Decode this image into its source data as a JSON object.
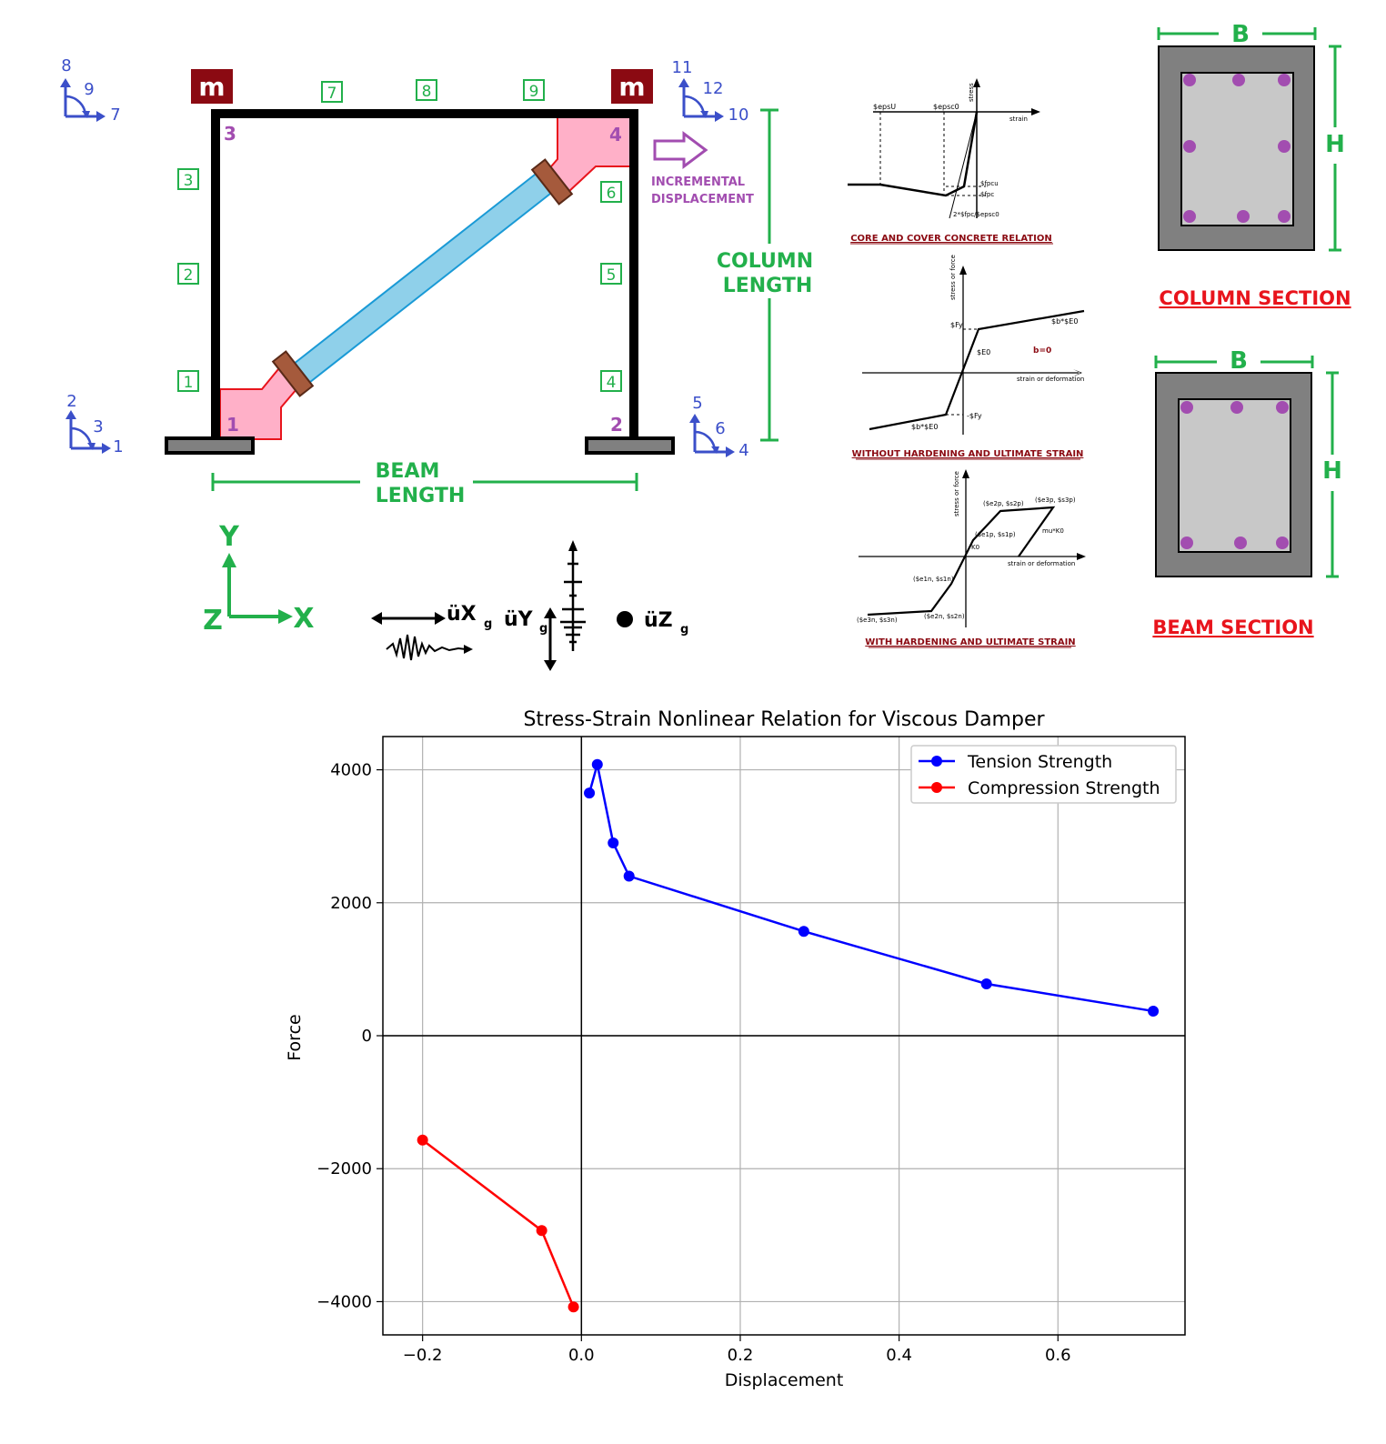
{
  "frame": {
    "mass_label": "m",
    "node_labels": [
      "1",
      "2",
      "3",
      "4"
    ],
    "element_labels": [
      "1",
      "2",
      "3",
      "4",
      "5",
      "6",
      "7",
      "8",
      "9"
    ],
    "dof_groups": [
      {
        "vertical": "2",
        "rotation": "3",
        "horizontal": "1"
      },
      {
        "vertical": "5",
        "rotation": "6",
        "horizontal": "4"
      },
      {
        "vertical": "8",
        "rotation": "9",
        "horizontal": "7"
      },
      {
        "vertical": "11",
        "rotation": "12",
        "horizontal": "10"
      }
    ],
    "incremental_displacement": [
      "INCREMENTAL",
      "DISPLACEMENT"
    ],
    "column_length": [
      "COLUMN",
      "LENGTH"
    ],
    "beam_length": [
      "BEAM",
      "LENGTH"
    ],
    "axes": {
      "y": "Y",
      "x": "X",
      "z": "Z"
    },
    "ground_motion": {
      "x": "üX",
      "y": "üY",
      "z": "üZ",
      "sub": "g"
    }
  },
  "material_panels": {
    "concrete": {
      "title": "CORE AND COVER CONCRETE RELATION",
      "labels": [
        "$epsU",
        "$epsc0",
        "stress",
        "strain",
        "$fpcu",
        "$fpc",
        "2*$fpc/$epsc0"
      ]
    },
    "steel_no_hardening": {
      "title": "WITHOUT HARDENING AND ULTIMATE STRAIN",
      "labels": [
        "stress or force",
        "$Fy",
        "$b*$E0",
        "$E0",
        "b=0",
        "strain or deformation",
        "-$Fy",
        "$b*$E0"
      ]
    },
    "steel_hardening": {
      "title": "WITH HARDENING AND ULTIMATE STRAIN",
      "labels": [
        "stress or force",
        "($e2p, $s2p)",
        "($e3p, $s3p)",
        "($e1p, $s1p)",
        "mu*K0",
        "K0",
        "strain or deformation",
        "($e1n, $s1n)",
        "($e3n, $s3n)",
        "($e2n, $s2n)"
      ]
    }
  },
  "sections": {
    "column": {
      "title": "COLUMN SECTION",
      "b": "B",
      "h": "H"
    },
    "beam": {
      "title": "BEAM SECTION",
      "b": "B",
      "h": "H"
    }
  },
  "colors": {
    "green": "#22b04b",
    "blue": "#3b4fc9",
    "purple": "#a24db0",
    "red": "#e8141c",
    "dark_red": "#8b0a12",
    "pink": "#ffb0c8",
    "brace": "#8fd0ea"
  },
  "chart_data": {
    "type": "line",
    "title": "Stress-Strain Nonlinear Relation for Viscous Damper",
    "xlabel": "Displacement",
    "ylabel": "Force",
    "xlim": [
      -0.25,
      0.76
    ],
    "ylim": [
      -4500,
      4500
    ],
    "xticks": [
      -0.2,
      0.0,
      0.2,
      0.4,
      0.6
    ],
    "xtick_labels": [
      "−0.2",
      "0.0",
      "0.2",
      "0.4",
      "0.6"
    ],
    "yticks": [
      -4000,
      -2000,
      0,
      2000,
      4000
    ],
    "ytick_labels": [
      "−4000",
      "−2000",
      "0",
      "2000",
      "4000"
    ],
    "grid": true,
    "legend": "top-right",
    "series": [
      {
        "name": "Tension Strength",
        "color": "#0000ff",
        "x": [
          0.01,
          0.02,
          0.04,
          0.06,
          0.28,
          0.51,
          0.72
        ],
        "y": [
          3650,
          4080,
          2900,
          2400,
          1570,
          780,
          370
        ]
      },
      {
        "name": "Compression Strength",
        "color": "#ff0000",
        "x": [
          -0.2,
          -0.05,
          -0.01
        ],
        "y": [
          -1570,
          -2930,
          -4080
        ]
      }
    ]
  }
}
